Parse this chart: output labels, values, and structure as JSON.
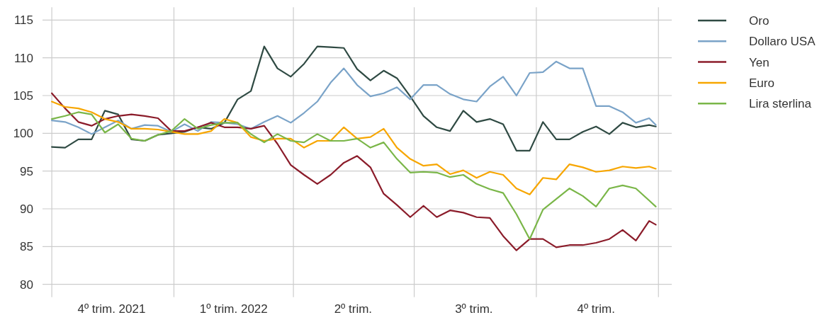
{
  "chart_data": {
    "type": "line",
    "x": [
      "2021-10-01",
      "2021-10-11",
      "2021-10-21",
      "2021-10-31",
      "2021-11-10",
      "2021-11-20",
      "2021-11-30",
      "2021-12-10",
      "2021-12-20",
      "2021-12-30",
      "2022-01-09",
      "2022-01-19",
      "2022-01-29",
      "2022-02-08",
      "2022-02-18",
      "2022-02-28",
      "2022-03-10",
      "2022-03-20",
      "2022-03-30",
      "2022-04-09",
      "2022-04-19",
      "2022-04-29",
      "2022-05-09",
      "2022-05-19",
      "2022-05-29",
      "2022-06-08",
      "2022-06-18",
      "2022-06-28",
      "2022-07-08",
      "2022-07-18",
      "2022-07-28",
      "2022-08-07",
      "2022-08-17",
      "2022-08-27",
      "2022-09-06",
      "2022-09-16",
      "2022-09-26",
      "2022-10-06",
      "2022-10-16",
      "2022-10-26",
      "2022-11-05",
      "2022-11-15",
      "2022-11-25",
      "2022-12-05",
      "2022-12-15",
      "2022-12-25",
      "2022-12-30"
    ],
    "series": [
      {
        "name": "Oro",
        "color": "#2f4a43",
        "values": [
          98.2,
          98.1,
          99.2,
          99.2,
          103.0,
          102.5,
          99.2,
          99.0,
          99.8,
          100.0,
          100.2,
          100.8,
          100.6,
          101.4,
          104.5,
          105.6,
          111.5,
          108.6,
          107.5,
          109.2,
          111.5,
          111.4,
          111.3,
          108.5,
          107.0,
          108.3,
          107.3,
          104.9,
          102.3,
          100.8,
          100.3,
          103.0,
          101.5,
          101.9,
          101.2,
          97.7,
          97.7,
          101.5,
          99.2,
          99.2,
          100.2,
          100.9,
          99.9,
          101.4,
          100.8,
          101.1,
          100.9
        ]
      },
      {
        "name": "Dollaro USA",
        "color": "#7aa3c8",
        "values": [
          101.7,
          101.5,
          100.8,
          99.9,
          100.8,
          101.7,
          100.6,
          101.1,
          101.0,
          100.2,
          101.2,
          100.3,
          101.5,
          101.4,
          101.2,
          100.6,
          101.5,
          102.3,
          101.4,
          102.7,
          104.2,
          106.7,
          108.6,
          106.4,
          104.9,
          105.3,
          106.1,
          104.5,
          106.4,
          106.4,
          105.2,
          104.5,
          104.2,
          106.2,
          107.5,
          105.0,
          108.0,
          108.1,
          109.5,
          108.6,
          108.6,
          103.6,
          103.6,
          102.8,
          101.4,
          102.0,
          101.1
        ]
      },
      {
        "name": "Yen",
        "color": "#8b1c2a",
        "values": [
          105.3,
          103.3,
          101.5,
          101.0,
          101.9,
          102.3,
          102.5,
          102.3,
          102.0,
          100.3,
          100.3,
          100.8,
          101.4,
          100.8,
          100.8,
          100.6,
          101.0,
          98.6,
          95.8,
          94.5,
          93.3,
          94.5,
          96.1,
          97.0,
          95.5,
          92.0,
          90.5,
          88.9,
          90.4,
          88.9,
          89.8,
          89.5,
          88.9,
          88.8,
          86.4,
          84.5,
          86.0,
          86.0,
          84.9,
          85.2,
          85.2,
          85.5,
          86.0,
          87.2,
          85.8,
          88.4,
          87.9
        ]
      },
      {
        "name": "Euro",
        "color": "#f7a600",
        "values": [
          104.2,
          103.5,
          103.3,
          102.8,
          101.9,
          101.5,
          100.6,
          100.6,
          100.5,
          100.2,
          99.9,
          99.9,
          100.3,
          101.9,
          101.4,
          99.5,
          99.0,
          99.3,
          99.3,
          98.1,
          99.0,
          99.0,
          100.8,
          99.3,
          99.5,
          100.6,
          98.1,
          96.6,
          95.7,
          95.9,
          94.6,
          95.1,
          94.1,
          94.9,
          94.5,
          92.7,
          91.9,
          94.1,
          93.9,
          95.9,
          95.5,
          94.9,
          95.1,
          95.6,
          95.4,
          95.6,
          95.3
        ]
      },
      {
        "name": "Lira sterlina",
        "color": "#7ab648",
        "values": [
          101.9,
          102.3,
          102.8,
          102.5,
          100.1,
          101.2,
          99.3,
          99.0,
          99.8,
          100.3,
          101.9,
          100.6,
          101.1,
          101.4,
          101.4,
          99.9,
          98.8,
          99.9,
          99.0,
          98.8,
          99.9,
          99.0,
          99.0,
          99.3,
          98.1,
          98.8,
          96.6,
          94.8,
          94.9,
          94.8,
          94.2,
          94.5,
          93.3,
          92.6,
          92.1,
          89.3,
          86.0,
          89.9,
          91.3,
          92.7,
          91.7,
          90.3,
          92.7,
          93.1,
          92.7,
          91.1,
          90.3
        ]
      }
    ],
    "xlim": [
      "2021-09-24",
      "2023-01-11"
    ],
    "xticks": [
      {
        "value": "2021-10-01",
        "label": null
      },
      {
        "value": "2021-11-15",
        "label": "4º trim. 2021"
      },
      {
        "value": "2022-01-01",
        "label": null
      },
      {
        "value": "2022-02-15",
        "label": "1º trim. 2022"
      },
      {
        "value": "2022-04-01",
        "label": null
      },
      {
        "value": "2022-05-16",
        "label": "2º trim."
      },
      {
        "value": "2022-07-01",
        "label": null
      },
      {
        "value": "2022-08-15",
        "label": "3º trim."
      },
      {
        "value": "2022-10-01",
        "label": null
      },
      {
        "value": "2022-11-15",
        "label": "4º trim."
      },
      {
        "value": "2023-01-01",
        "label": null
      }
    ],
    "ylim": [
      80,
      115
    ],
    "yticks": [
      80,
      85,
      90,
      95,
      100,
      105,
      110,
      115
    ],
    "grid": true,
    "legend": "top right"
  }
}
